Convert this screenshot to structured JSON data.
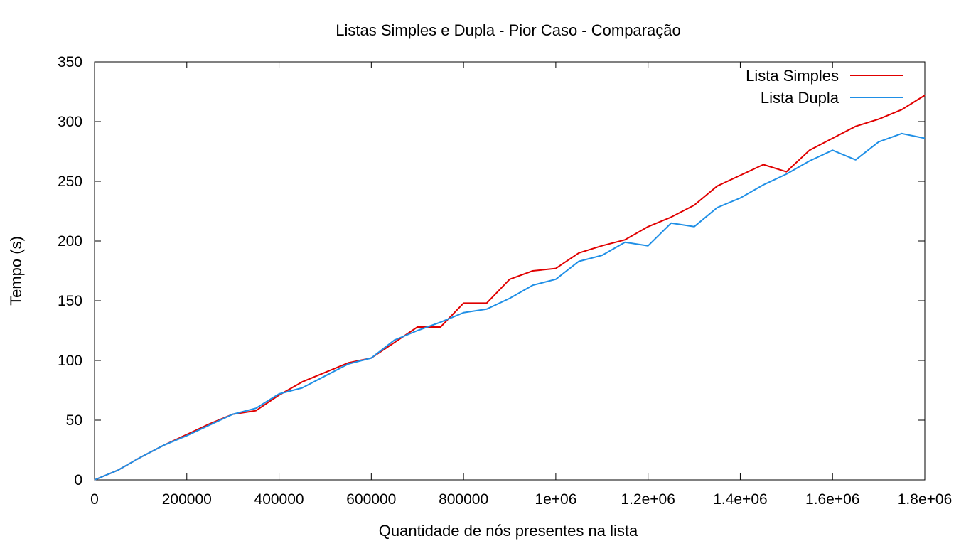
{
  "chart_data": {
    "type": "line",
    "title": "Listas Simples e Dupla - Pior Caso - Comparação",
    "xlabel": "Quantidade de nós presentes na lista",
    "ylabel": "Tempo (s)",
    "xlim": [
      0,
      1800000
    ],
    "ylim": [
      0,
      350
    ],
    "xticks": [
      0,
      200000,
      400000,
      600000,
      800000,
      1000000,
      1200000,
      1400000,
      1600000,
      1800000
    ],
    "xtick_labels": [
      "0",
      "200000",
      "400000",
      "600000",
      "800000",
      "1e+06",
      "1.2e+06",
      "1.4e+06",
      "1.6e+06",
      "1.8e+06"
    ],
    "yticks": [
      0,
      50,
      100,
      150,
      200,
      250,
      300,
      350
    ],
    "ytick_labels": [
      "0",
      "50",
      "100",
      "150",
      "200",
      "250",
      "300",
      "350"
    ],
    "grid": false,
    "legend": "top-right",
    "series": [
      {
        "name": "Lista Simples",
        "color": "#e00000",
        "x": [
          0,
          50000,
          100000,
          150000,
          200000,
          250000,
          300000,
          350000,
          400000,
          450000,
          500000,
          550000,
          600000,
          650000,
          700000,
          750000,
          800000,
          850000,
          900000,
          950000,
          1000000,
          1050000,
          1100000,
          1150000,
          1200000,
          1250000,
          1300000,
          1350000,
          1400000,
          1450000,
          1500000,
          1550000,
          1600000,
          1650000,
          1700000,
          1750000,
          1800000
        ],
        "y": [
          0,
          8,
          19,
          29,
          38,
          47,
          55,
          58,
          71,
          82,
          90,
          98,
          102,
          115,
          128,
          128,
          148,
          148,
          168,
          175,
          177,
          190,
          196,
          201,
          212,
          220,
          230,
          246,
          255,
          264,
          258,
          276,
          286,
          296,
          302,
          310,
          322
        ]
      },
      {
        "name": "Lista Dupla",
        "color": "#1f8fe6",
        "x": [
          0,
          50000,
          100000,
          150000,
          200000,
          250000,
          300000,
          350000,
          400000,
          450000,
          500000,
          550000,
          600000,
          650000,
          700000,
          750000,
          800000,
          850000,
          900000,
          950000,
          1000000,
          1050000,
          1100000,
          1150000,
          1200000,
          1250000,
          1300000,
          1350000,
          1400000,
          1450000,
          1500000,
          1550000,
          1600000,
          1650000,
          1700000,
          1750000,
          1800000
        ],
        "y": [
          0,
          8,
          19,
          29,
          37,
          46,
          55,
          60,
          72,
          77,
          87,
          97,
          102,
          117,
          125,
          132,
          140,
          143,
          152,
          163,
          168,
          183,
          188,
          199,
          196,
          215,
          212,
          228,
          236,
          247,
          256,
          267,
          276,
          268,
          283,
          290,
          286
        ]
      }
    ]
  }
}
